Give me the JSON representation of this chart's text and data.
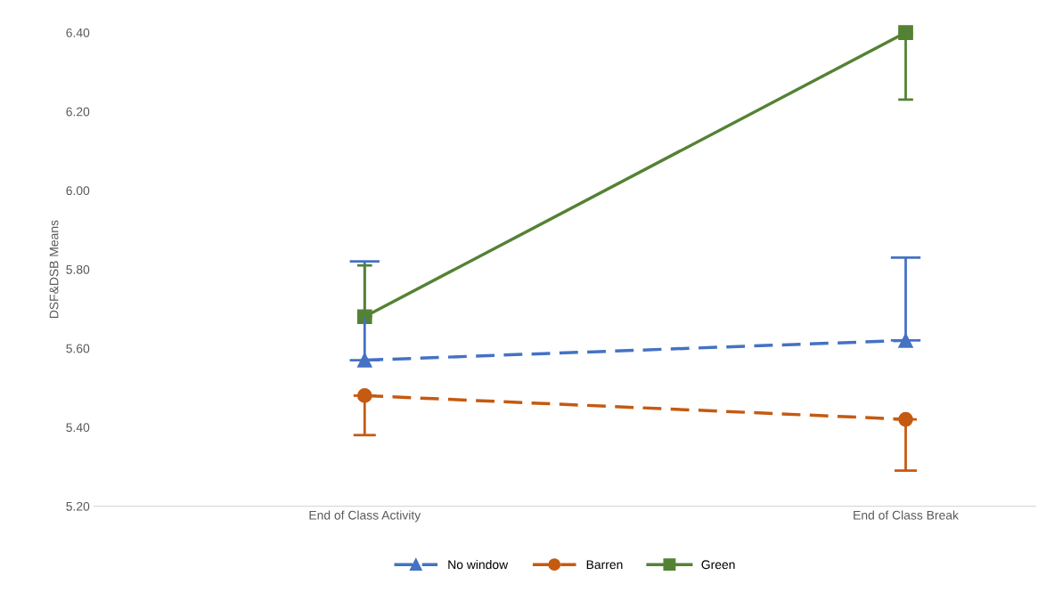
{
  "chart_data": {
    "type": "line",
    "ylabel": "DSF&DSB Means",
    "categories": [
      "End of Class Activity",
      "End of Class Break"
    ],
    "series": [
      {
        "name": "No window",
        "color": "#4472c4",
        "values": [
          5.57,
          5.62
        ],
        "marker": "triangle",
        "line_style": "dashed",
        "errors": [
          [
            5.57,
            5.82
          ],
          [
            5.62,
            5.83
          ]
        ]
      },
      {
        "name": "Barren",
        "color": "#c55a11",
        "values": [
          5.48,
          5.42
        ],
        "marker": "circle",
        "line_style": "dashed",
        "errors": [
          [
            5.38,
            5.48
          ],
          [
            5.29,
            5.42
          ]
        ]
      },
      {
        "name": "Green",
        "color": "#548235",
        "values": [
          5.68,
          6.4
        ],
        "marker": "square",
        "line_style": "solid",
        "errors": [
          [
            5.68,
            5.81
          ],
          [
            6.23,
            6.4
          ]
        ]
      }
    ],
    "ylim": [
      5.2,
      6.4
    ],
    "yticks": [
      {
        "value": 5.2,
        "label": "5.20"
      },
      {
        "value": 5.4,
        "label": "5.40"
      },
      {
        "value": 5.6,
        "label": "5.60"
      },
      {
        "value": 5.8,
        "label": "5.80"
      },
      {
        "value": 6.0,
        "label": "6.00"
      },
      {
        "value": 6.2,
        "label": "6.20"
      },
      {
        "value": 6.4,
        "label": "6.40"
      }
    ],
    "grid": false,
    "legend": "bottom"
  }
}
